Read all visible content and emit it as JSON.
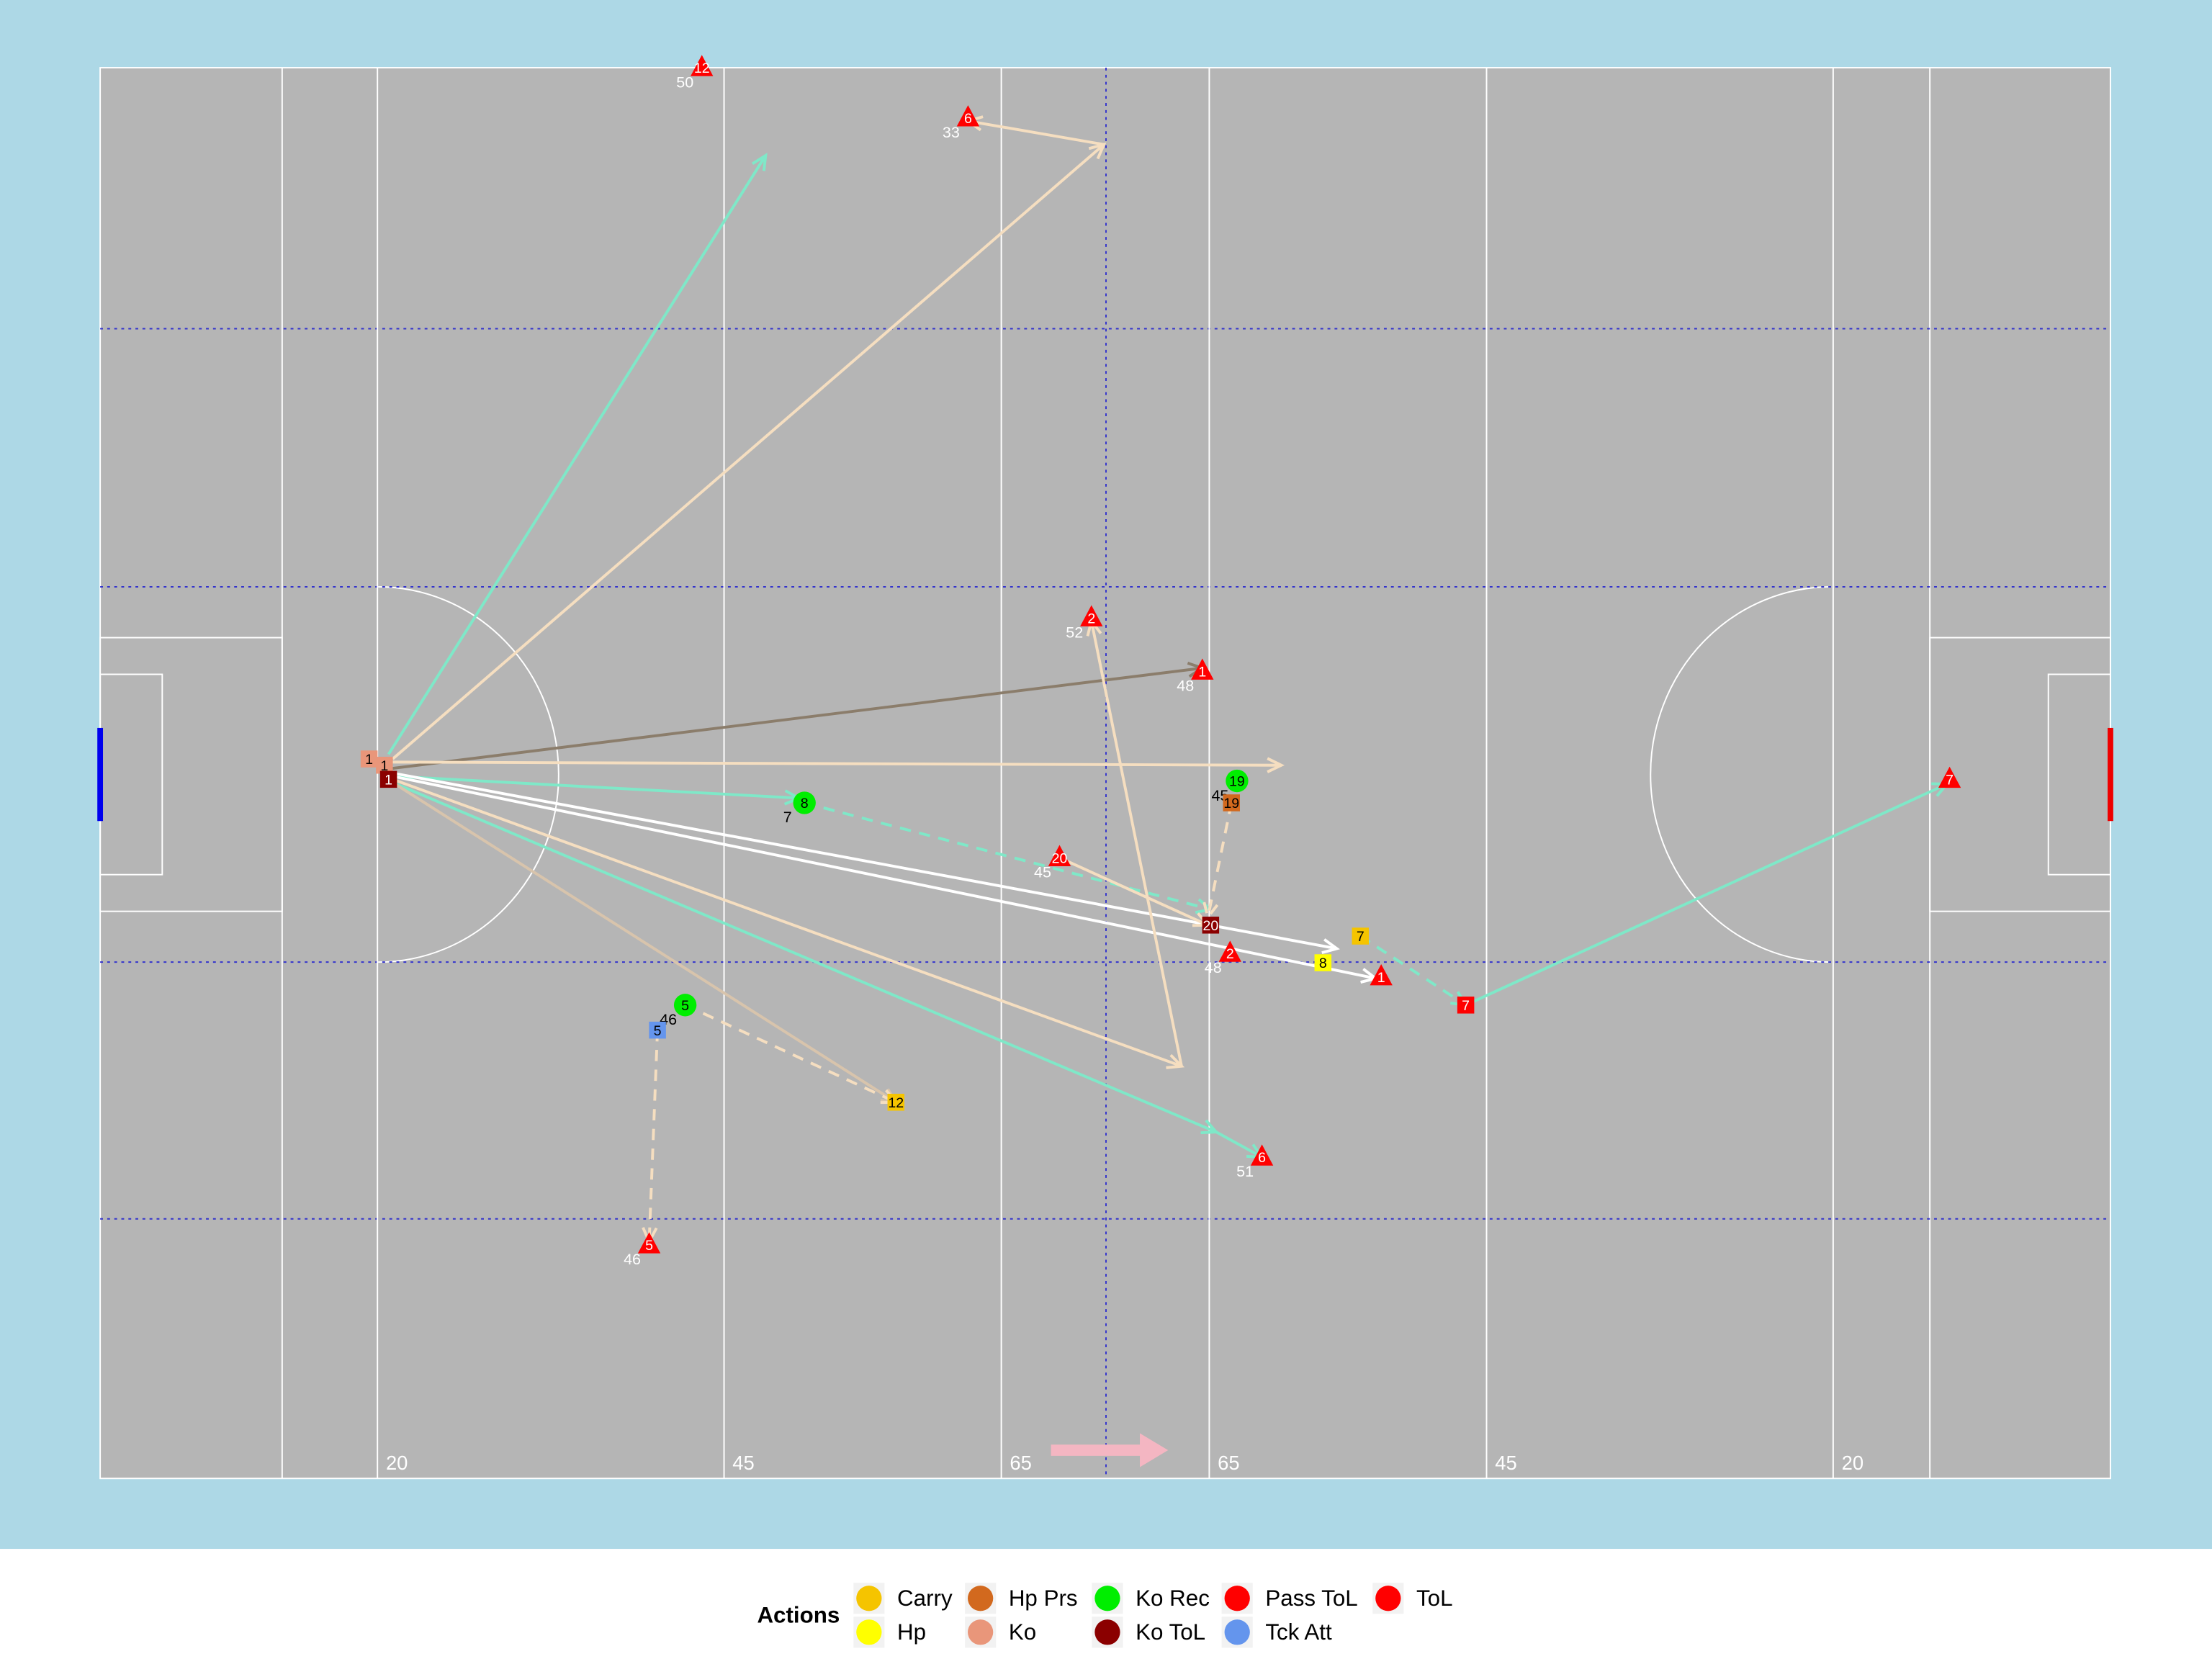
{
  "chart_data": {
    "type": "pitch",
    "xlim": [
      0,
      145
    ],
    "ylim": [
      0,
      90
    ],
    "xticks": [
      20,
      45,
      65,
      {
        "value": 80,
        "label": "65"
      },
      {
        "value": 100,
        "label": "45"
      },
      {
        "value": 125,
        "label": "20"
      }
    ],
    "legend": {
      "title": "Actions",
      "items": [
        {
          "name": "Carry",
          "color": "#f5c400"
        },
        {
          "name": "Hp",
          "color": "#ffff00"
        },
        {
          "name": "Hp Prs",
          "color": "#d2691e"
        },
        {
          "name": "Ko",
          "color": "#e9967a"
        },
        {
          "name": "Ko Rec",
          "color": "#00ee00"
        },
        {
          "name": "Ko ToL",
          "color": "#8b0000"
        },
        {
          "name": "Pass ToL",
          "color": "#ff0000"
        },
        {
          "name": "Tck Att",
          "color": "#6495ed"
        },
        {
          "name": "ToL",
          "color": "#ff0000"
        }
      ]
    },
    "arrows": [
      {
        "x": 20.8,
        "y": 46.2,
        "xend": 48.0,
        "yend": 84.4,
        "color": "#7fe8c8",
        "dashed": false
      },
      {
        "x": 21.1,
        "y": 45.9,
        "xend": 72.4,
        "yend": 85.1,
        "color": "#f5dec0",
        "dashed": false
      },
      {
        "x": 72.4,
        "y": 85.1,
        "xend": 62.6,
        "yend": 86.6,
        "color": "#f5dec0",
        "dashed": false
      },
      {
        "x": 21.1,
        "y": 45.3,
        "xend": 79.5,
        "yend": 51.7,
        "color": "#8b7d6b",
        "dashed": false
      },
      {
        "x": 21.1,
        "y": 45.7,
        "xend": 85.2,
        "yend": 45.5,
        "color": "#f5dec0",
        "dashed": false
      },
      {
        "x": 21.1,
        "y": 44.8,
        "xend": 50.4,
        "yend": 43.4,
        "color": "#7fe8c8",
        "dashed": false
      },
      {
        "x": 50.8,
        "y": 43.1,
        "xend": 80.1,
        "yend": 36.3,
        "color": "#7fe8c8",
        "dashed": true
      },
      {
        "x": 21.1,
        "y": 45.0,
        "xend": 89.2,
        "yend": 33.8,
        "color": "#ffffff",
        "dashed": false
      },
      {
        "x": 21.1,
        "y": 44.8,
        "xend": 92.0,
        "yend": 31.9,
        "color": "#ffffff",
        "dashed": false
      },
      {
        "x": 21.1,
        "y": 44.6,
        "xend": 78.0,
        "yend": 26.3,
        "color": "#f5dec0",
        "dashed": false
      },
      {
        "x": 78.0,
        "y": 26.3,
        "xend": 71.5,
        "yend": 54.7,
        "color": "#f5dec0",
        "dashed": false
      },
      {
        "x": 21.1,
        "y": 44.4,
        "xend": 80.5,
        "yend": 22.1,
        "color": "#7fe8c8",
        "dashed": false
      },
      {
        "x": 80.5,
        "y": 22.1,
        "xend": 83.8,
        "yend": 20.5,
        "color": "#7fe8c8",
        "dashed": false
      },
      {
        "x": 21.1,
        "y": 44.4,
        "xend": 57.4,
        "yend": 24.0,
        "color": "#d8c4ac",
        "dashed": false
      },
      {
        "x": 98.5,
        "y": 30.2,
        "xend": 133.2,
        "yend": 44.3,
        "color": "#7fe8c8",
        "dashed": false
      },
      {
        "x": 90.9,
        "y": 34.6,
        "xend": 98.5,
        "yend": 30.2,
        "color": "#7fe8c8",
        "dashed": true
      },
      {
        "x": 81.6,
        "y": 43.1,
        "xend": 79.9,
        "yend": 35.8,
        "color": "#f5dec0",
        "dashed": true
      },
      {
        "x": 42.2,
        "y": 30.2,
        "xend": 57.4,
        "yend": 24.0,
        "color": "#f5dec0",
        "dashed": true
      },
      {
        "x": 40.2,
        "y": 28.6,
        "xend": 39.6,
        "yend": 15.1,
        "color": "#f5dec0",
        "dashed": true
      },
      {
        "x": 69.2,
        "y": 39.6,
        "xend": 79.9,
        "yend": 35.3,
        "color": "#f5dec0",
        "dashed": false
      }
    ],
    "events": [
      {
        "type": "Ko",
        "shape": "square",
        "x": 19.4,
        "y": 45.9,
        "label": 1
      },
      {
        "type": "Ko",
        "shape": "square",
        "x": 20.5,
        "y": 45.5,
        "label": 1
      },
      {
        "type": "Ko ToL",
        "shape": "square",
        "x": 20.8,
        "y": 44.6,
        "label": 1
      },
      {
        "type": "ToL",
        "shape": "triangle",
        "x": 43.4,
        "y": 90.0,
        "label": 12,
        "minute": 50
      },
      {
        "type": "ToL",
        "shape": "triangle",
        "x": 62.6,
        "y": 86.8,
        "label": 6,
        "minute": 33
      },
      {
        "type": "ToL",
        "shape": "triangle",
        "x": 71.5,
        "y": 54.9,
        "label": 2,
        "minute": 52
      },
      {
        "type": "ToL",
        "shape": "triangle",
        "x": 79.5,
        "y": 51.5,
        "label": 1,
        "minute": 48
      },
      {
        "type": "Ko Rec",
        "shape": "circle",
        "x": 82.0,
        "y": 44.5,
        "label": 19,
        "minute": 45
      },
      {
        "type": "Hp Prs",
        "shape": "square",
        "x": 81.6,
        "y": 43.1,
        "label": 19
      },
      {
        "type": "Ko Rec",
        "shape": "circle",
        "x": 50.8,
        "y": 43.1,
        "label": 8,
        "minute": 7
      },
      {
        "type": "ToL",
        "shape": "triangle",
        "x": 69.2,
        "y": 39.6,
        "label": 20,
        "minute": 45
      },
      {
        "type": "Ko ToL",
        "shape": "square",
        "x": 80.1,
        "y": 35.3,
        "label": 20
      },
      {
        "type": "ToL",
        "shape": "triangle",
        "x": 81.5,
        "y": 33.5,
        "label": 2,
        "minute": 48
      },
      {
        "type": "Carry",
        "shape": "square",
        "x": 90.9,
        "y": 34.6,
        "label": 7
      },
      {
        "type": "Hp",
        "shape": "square",
        "x": 88.2,
        "y": 32.9,
        "label": 8
      },
      {
        "type": "ToL",
        "shape": "triangle",
        "x": 92.4,
        "y": 32.0,
        "label": 1
      },
      {
        "type": "Pass ToL",
        "shape": "square",
        "x": 98.5,
        "y": 30.2,
        "label": 7
      },
      {
        "type": "ToL",
        "shape": "triangle",
        "x": 133.4,
        "y": 44.6,
        "label": 7
      },
      {
        "type": "Ko Rec",
        "shape": "circle",
        "x": 42.2,
        "y": 30.2,
        "label": 5,
        "minute": 46
      },
      {
        "type": "Tck Att",
        "shape": "square",
        "x": 40.2,
        "y": 28.6,
        "label": 5
      },
      {
        "type": "Carry",
        "shape": "square",
        "x": 57.4,
        "y": 24.0,
        "label": 12
      },
      {
        "type": "ToL",
        "shape": "triangle",
        "x": 83.8,
        "y": 20.5,
        "label": 6,
        "minute": 51
      },
      {
        "type": "ToL",
        "shape": "triangle",
        "x": 39.6,
        "y": 14.9,
        "label": 5,
        "minute": 46
      }
    ]
  }
}
